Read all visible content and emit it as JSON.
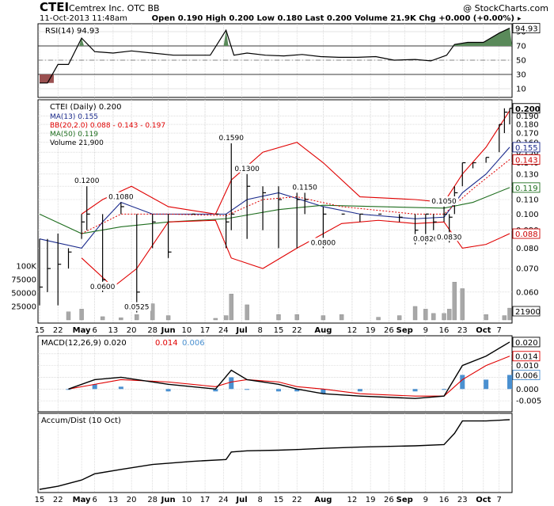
{
  "header": {
    "symbol": "CTEI",
    "company": "Cemtrex Inc.  OTC BB",
    "watermark": "@ StockCharts.com",
    "datetime": "11-Oct-2013 11:48am",
    "quote": "Open 0.190  High 0.200  Low 0.180  Last 0.200  Volume 21.9K  Chg +0.000 (+0.00%)",
    "quote_change_arrow": "▸"
  },
  "colors": {
    "price": "#000000",
    "ma13": "#1a2a8c",
    "bb": "#e00000",
    "ma50": "#1f6e1f",
    "volume": "#a8a8a8",
    "macd_hist": "#4a90d0",
    "macd_signal": "#e00000",
    "rsi_fill": "#5a8a5a",
    "rsi_fill_low": "#9a5050",
    "grid": "#c8c8c8",
    "callout_red": "#cc0000",
    "callout_blue": "#1a2a8c",
    "callout_green": "#1f6e1f",
    "callout_black": "#000000"
  },
  "chart_data": [
    {
      "panel": "rsi",
      "type": "line",
      "label": "RSI(14) 94.93",
      "current_value": "94.93",
      "ylim": [
        0,
        100
      ],
      "y_ticks": [
        "10",
        "30",
        "50",
        "70",
        "90"
      ],
      "thresholds": [
        30,
        70
      ],
      "x": [
        "Apr 15",
        "Apr 18",
        "Apr 22",
        "Apr 26",
        "May 1",
        "May 6",
        "May 13",
        "May 20",
        "May 28",
        "Jun 5",
        "Jun 12",
        "Jun 19",
        "Jun 25",
        "Jun 28",
        "Jul 3",
        "Jul 10",
        "Jul 17",
        "Jul 24",
        "Jul 31",
        "Aug 7",
        "Aug 14",
        "Aug 21",
        "Aug 28",
        "Sep 5",
        "Sep 11",
        "Sep 17",
        "Sep 20",
        "Sep 25",
        "Oct 1",
        "Oct 7",
        "Oct 11"
      ],
      "values": [
        18,
        18,
        44,
        44,
        81,
        62,
        60,
        63,
        60,
        57,
        57,
        57,
        92,
        57,
        60,
        57,
        56,
        58,
        55,
        54,
        54,
        55,
        50,
        51,
        49,
        57,
        72,
        75,
        75,
        88,
        94.93
      ]
    },
    {
      "panel": "price",
      "type": "ohlc",
      "title": "CTEI (Daily) 0.200",
      "legend": [
        {
          "text": "MA(13) 0.155",
          "series": "ma13"
        },
        {
          "text": "BB(20,2.0) 0.088 - 0.143 - 0.197",
          "series": "bb"
        },
        {
          "text": "MA(50) 0.119",
          "series": "ma50"
        },
        {
          "text": "Volume 21,900",
          "series": "volume"
        }
      ],
      "log_scale": true,
      "ylim": [
        0.05,
        0.205
      ],
      "y_ticks": [
        "0.060",
        "0.070",
        "0.080",
        "0.090",
        "0.100",
        "0.110",
        "0.120",
        "0.130",
        "0.140",
        "0.150",
        "0.160",
        "0.170",
        "0.180",
        "0.190"
      ],
      "y_tags": [
        {
          "text": "0.200",
          "value": 0.2,
          "series": "price"
        },
        {
          "text": "0.155",
          "value": 0.155,
          "series": "ma13"
        },
        {
          "text": "0.143",
          "value": 0.143,
          "series": "bb"
        },
        {
          "text": "0.119",
          "value": 0.119,
          "series": "ma50"
        },
        {
          "text": "0.088",
          "value": 0.088,
          "series": "bb"
        }
      ],
      "x_ticks": [
        "15",
        "22",
        "May",
        "6",
        "13",
        "20",
        "28",
        "Jun",
        "10",
        "17",
        "24",
        "Jul",
        "8",
        "15",
        "22",
        "Aug",
        "12",
        "19",
        "26",
        "Sep",
        "9",
        "16",
        "23",
        "Oct",
        "7"
      ],
      "annotations": [
        {
          "text": "0.1200",
          "x": "May 3",
          "y": 0.12
        },
        {
          "text": "0.0600",
          "x": "May 9",
          "y": 0.06
        },
        {
          "text": "0.1080",
          "x": "May 16",
          "y": 0.108
        },
        {
          "text": "0.0525",
          "x": "May 22",
          "y": 0.0525
        },
        {
          "text": "0.1590",
          "x": "Jun 27",
          "y": 0.159
        },
        {
          "text": "0.1300",
          "x": "Jul 3",
          "y": 0.13
        },
        {
          "text": "0.1150",
          "x": "Jul 25",
          "y": 0.115
        },
        {
          "text": "0.0800",
          "x": "Aug 1",
          "y": 0.08
        },
        {
          "text": "0.0820",
          "x": "Sep 9",
          "y": 0.082
        },
        {
          "text": "0.1050",
          "x": "Sep 16",
          "y": 0.105
        },
        {
          "text": "0.0830",
          "x": "Sep 18",
          "y": 0.083
        }
      ],
      "bars": [
        {
          "d": "Apr 15",
          "h": 0.085,
          "l": 0.055,
          "c": 0.062
        },
        {
          "d": "Apr 18",
          "h": 0.085,
          "l": 0.06,
          "c": 0.07
        },
        {
          "d": "Apr 22",
          "h": 0.088,
          "l": 0.055,
          "c": 0.072
        },
        {
          "d": "Apr 26",
          "h": 0.08,
          "l": 0.07,
          "c": 0.078
        },
        {
          "d": "May 1",
          "h": 0.1,
          "l": 0.085,
          "c": 0.095
        },
        {
          "d": "May 3",
          "h": 0.12,
          "l": 0.09,
          "c": 0.1
        },
        {
          "d": "May 9",
          "h": 0.1,
          "l": 0.06,
          "c": 0.065
        },
        {
          "d": "May 16",
          "h": 0.108,
          "l": 0.1,
          "c": 0.105
        },
        {
          "d": "May 22",
          "h": 0.1,
          "l": 0.0525,
          "c": 0.06
        },
        {
          "d": "May 28",
          "h": 0.1,
          "l": 0.08,
          "c": 0.095
        },
        {
          "d": "Jun 3",
          "h": 0.1,
          "l": 0.075,
          "c": 0.078
        },
        {
          "d": "Jun 12",
          "h": 0.1,
          "l": 0.1,
          "c": 0.1
        },
        {
          "d": "Jun 21",
          "h": 0.1,
          "l": 0.1,
          "c": 0.1
        },
        {
          "d": "Jun 25",
          "h": 0.1,
          "l": 0.08,
          "c": 0.095
        },
        {
          "d": "Jun 27",
          "h": 0.159,
          "l": 0.09,
          "c": 0.1
        },
        {
          "d": "Jul 3",
          "h": 0.13,
          "l": 0.085,
          "c": 0.12
        },
        {
          "d": "Jul 9",
          "h": 0.12,
          "l": 0.09,
          "c": 0.115
        },
        {
          "d": "Jul 15",
          "h": 0.12,
          "l": 0.08,
          "c": 0.11
        },
        {
          "d": "Jul 22",
          "h": 0.115,
          "l": 0.08,
          "c": 0.11
        },
        {
          "d": "Jul 25",
          "h": 0.115,
          "l": 0.1,
          "c": 0.11
        },
        {
          "d": "Aug 1",
          "h": 0.105,
          "l": 0.08,
          "c": 0.1
        },
        {
          "d": "Aug 8",
          "h": 0.1,
          "l": 0.1,
          "c": 0.1
        },
        {
          "d": "Aug 15",
          "h": 0.1,
          "l": 0.095,
          "c": 0.1
        },
        {
          "d": "Aug 22",
          "h": 0.1,
          "l": 0.1,
          "c": 0.1
        },
        {
          "d": "Aug 30",
          "h": 0.1,
          "l": 0.095,
          "c": 0.098
        },
        {
          "d": "Sep 5",
          "h": 0.1,
          "l": 0.082,
          "c": 0.09
        },
        {
          "d": "Sep 9",
          "h": 0.1,
          "l": 0.082,
          "c": 0.1
        },
        {
          "d": "Sep 12",
          "h": 0.1,
          "l": 0.09,
          "c": 0.095
        },
        {
          "d": "Sep 16",
          "h": 0.105,
          "l": 0.095,
          "c": 0.1
        },
        {
          "d": "Sep 18",
          "h": 0.1,
          "l": 0.083,
          "c": 0.098
        },
        {
          "d": "Sep 20",
          "h": 0.12,
          "l": 0.1,
          "c": 0.115
        },
        {
          "d": "Sep 23",
          "h": 0.14,
          "l": 0.12,
          "c": 0.14
        },
        {
          "d": "Sep 27",
          "h": 0.14,
          "l": 0.135,
          "c": 0.14
        },
        {
          "d": "Oct 2",
          "h": 0.145,
          "l": 0.14,
          "c": 0.145
        },
        {
          "d": "Oct 7",
          "h": 0.18,
          "l": 0.15,
          "c": 0.18
        },
        {
          "d": "Oct 9",
          "h": 0.2,
          "l": 0.17,
          "c": 0.195
        },
        {
          "d": "Oct 11",
          "h": 0.2,
          "l": 0.18,
          "c": 0.2
        }
      ],
      "series": [
        {
          "key": "ma13",
          "x": [
            "Apr 15",
            "May 1",
            "May 9",
            "May 16",
            "May 28",
            "Jun 12",
            "Jun 25",
            "Jul 3",
            "Jul 15",
            "Aug 1",
            "Aug 15",
            "Sep 5",
            "Sep 16",
            "Sep 23",
            "Oct 2",
            "Oct 11"
          ],
          "values": [
            0.085,
            0.08,
            0.095,
            0.108,
            0.1,
            0.1,
            0.1,
            0.11,
            0.115,
            0.105,
            0.1,
            0.097,
            0.098,
            0.115,
            0.13,
            0.155
          ]
        },
        {
          "key": "ma50",
          "x": [
            "Apr 15",
            "May 1",
            "May 16",
            "Jun 3",
            "Jun 25",
            "Jul 15",
            "Aug 1",
            "Aug 22",
            "Sep 16",
            "Sep 27",
            "Oct 11"
          ],
          "values": [
            0.1,
            0.088,
            0.092,
            0.095,
            0.097,
            0.103,
            0.106,
            0.105,
            0.104,
            0.108,
            0.119
          ]
        },
        {
          "key": "bb_upper",
          "x": [
            "May 1",
            "May 9",
            "May 20",
            "Jun 3",
            "Jun 21",
            "Jun 27",
            "Jul 9",
            "Jul 22",
            "Aug 1",
            "Aug 15",
            "Sep 5",
            "Sep 16",
            "Sep 23",
            "Oct 2",
            "Oct 11"
          ],
          "values": [
            0.1,
            0.11,
            0.12,
            0.105,
            0.1,
            0.125,
            0.15,
            0.16,
            0.14,
            0.112,
            0.11,
            0.108,
            0.13,
            0.155,
            0.197
          ]
        },
        {
          "key": "bb_mid",
          "x": [
            "May 1",
            "May 16",
            "Jun 3",
            "Jun 25",
            "Jul 9",
            "Jul 22",
            "Aug 8",
            "Sep 5",
            "Sep 16",
            "Sep 27",
            "Oct 11"
          ],
          "values": [
            0.088,
            0.1,
            0.1,
            0.099,
            0.11,
            0.112,
            0.105,
            0.1,
            0.1,
            0.118,
            0.143
          ]
        },
        {
          "key": "bb_lower",
          "x": [
            "May 1",
            "May 13",
            "May 22",
            "Jun 3",
            "Jun 21",
            "Jun 27",
            "Jul 9",
            "Jul 22",
            "Aug 8",
            "Aug 22",
            "Sep 5",
            "Sep 16",
            "Sep 23",
            "Oct 2",
            "Oct 11"
          ],
          "values": [
            0.075,
            0.062,
            0.07,
            0.095,
            0.096,
            0.075,
            0.07,
            0.08,
            0.094,
            0.096,
            0.094,
            0.095,
            0.08,
            0.082,
            0.088
          ]
        }
      ]
    },
    {
      "panel": "volume",
      "type": "bar",
      "ylim": [
        0,
        110000
      ],
      "y_ticks": [
        "25000",
        "50000",
        "75000",
        "100K"
      ],
      "current_value": "21900",
      "x": [
        "Apr 26",
        "May 1",
        "May 9",
        "May 16",
        "May 22",
        "May 28",
        "Jun 3",
        "Jun 21",
        "Jun 25",
        "Jun 27",
        "Jul 3",
        "Jul 15",
        "Jul 22",
        "Aug 1",
        "Aug 8",
        "Aug 22",
        "Aug 30",
        "Sep 5",
        "Sep 9",
        "Sep 12",
        "Sep 16",
        "Sep 18",
        "Sep 20",
        "Sep 23",
        "Oct 2",
        "Oct 9",
        "Oct 11"
      ],
      "values": [
        15000,
        20000,
        6000,
        4000,
        10000,
        30000,
        8000,
        3000,
        8000,
        48000,
        28000,
        10000,
        10000,
        8000,
        10000,
        5000,
        8000,
        25000,
        20000,
        12000,
        12000,
        20000,
        70000,
        58000,
        10000,
        8000,
        21900
      ]
    },
    {
      "panel": "macd",
      "type": "line",
      "label_main": "MACD(12,26,9) 0.020",
      "label_signal": "0.014",
      "label_hist": "0.006",
      "ylim": [
        -0.009,
        0.022
      ],
      "y_ticks": [
        "-0.005",
        "0.000",
        "0.005",
        "0.010",
        "0.015"
      ],
      "y_tags": [
        {
          "text": "0.020",
          "value": 0.02,
          "series": "macd"
        },
        {
          "text": "0.014",
          "value": 0.014,
          "series": "signal"
        },
        {
          "text": "0.006",
          "value": 0.006,
          "series": "hist"
        }
      ],
      "x": [
        "Apr 26",
        "May 6",
        "May 16",
        "Jun 3",
        "Jun 21",
        "Jun 27",
        "Jul 3",
        "Jul 15",
        "Jul 22",
        "Aug 1",
        "Aug 15",
        "Sep 5",
        "Sep 16",
        "Sep 23",
        "Oct 2",
        "Oct 11"
      ],
      "macd": [
        0.0,
        0.004,
        0.005,
        0.002,
        0.0,
        0.008,
        0.004,
        0.002,
        0.0,
        -0.002,
        -0.003,
        -0.004,
        -0.003,
        0.01,
        0.014,
        0.02
      ],
      "signal": [
        0.0,
        0.002,
        0.004,
        0.003,
        0.001,
        0.003,
        0.004,
        0.003,
        0.001,
        0.0,
        -0.002,
        -0.003,
        -0.003,
        0.004,
        0.01,
        0.014
      ],
      "hist": [
        0.0,
        0.002,
        0.001,
        -0.001,
        -0.001,
        0.005,
        0.0,
        -0.001,
        -0.001,
        -0.002,
        -0.001,
        -0.001,
        0.0,
        0.006,
        0.004,
        0.006
      ]
    },
    {
      "panel": "accum",
      "type": "line",
      "label": "Accum/Dist (10 Oct)",
      "x": [
        "Apr 15",
        "Apr 22",
        "May 1",
        "May 6",
        "May 16",
        "May 28",
        "Jun 12",
        "Jun 25",
        "Jun 27",
        "Jul 3",
        "Jul 15",
        "Jul 22",
        "Aug 1",
        "Aug 15",
        "Sep 5",
        "Sep 16",
        "Sep 20",
        "Sep 23",
        "Oct 2",
        "Oct 11"
      ],
      "values": [
        0,
        5,
        15,
        25,
        32,
        40,
        45,
        48,
        60,
        62,
        63,
        64,
        66,
        68,
        70,
        72,
        90,
        110,
        110,
        112
      ]
    }
  ]
}
